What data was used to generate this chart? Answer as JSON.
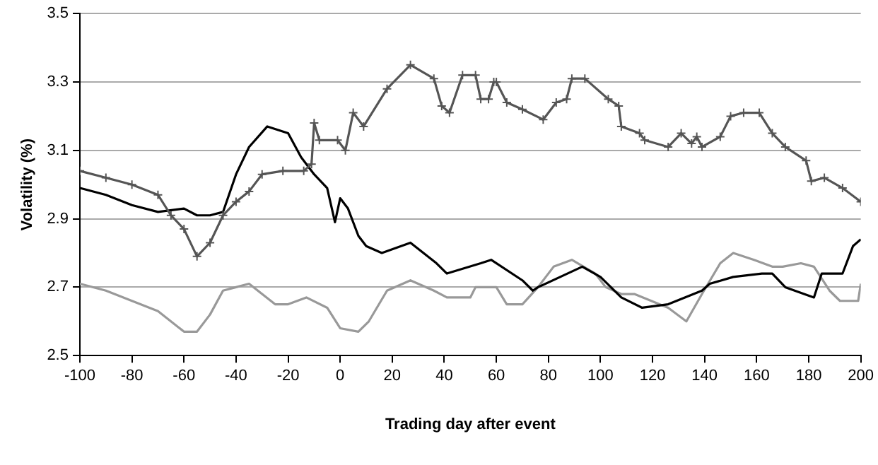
{
  "chart_data": {
    "type": "line",
    "xlabel": "Trading day after event",
    "ylabel": "Volatility (%)",
    "xlim": [
      -100,
      200
    ],
    "xticks": [
      -100,
      -80,
      -60,
      -40,
      -20,
      0,
      20,
      40,
      60,
      80,
      100,
      120,
      140,
      160,
      180,
      200
    ],
    "ylim": [
      2.5,
      3.5
    ],
    "yticks": [
      2.5,
      2.7,
      2.9,
      3.1,
      3.3,
      3.5
    ],
    "grid": "y",
    "legend": false,
    "series": [
      {
        "color": "#555555",
        "marker": "cross",
        "x": [
          -100,
          -90,
          -80,
          -70,
          -65,
          -60,
          -55,
          -50,
          -45,
          -40,
          -35,
          -30,
          -22,
          -14,
          -11,
          -10,
          -8,
          -1,
          2,
          5,
          9,
          18,
          27,
          36,
          39,
          42,
          47,
          52,
          54,
          57,
          59,
          60,
          64,
          70,
          78,
          83,
          87,
          89,
          94,
          103,
          107,
          108,
          115,
          117,
          126,
          131,
          135,
          137,
          139,
          146,
          150,
          155,
          161,
          166,
          171,
          179,
          181,
          186,
          193,
          200
        ],
        "values": [
          3.04,
          3.02,
          3.0,
          2.97,
          2.91,
          2.87,
          2.79,
          2.83,
          2.91,
          2.95,
          2.98,
          3.03,
          3.04,
          3.04,
          3.06,
          3.18,
          3.13,
          3.13,
          3.1,
          3.21,
          3.17,
          3.28,
          3.35,
          3.31,
          3.23,
          3.21,
          3.32,
          3.32,
          3.25,
          3.25,
          3.3,
          3.3,
          3.24,
          3.22,
          3.19,
          3.24,
          3.25,
          3.31,
          3.31,
          3.25,
          3.23,
          3.17,
          3.15,
          3.13,
          3.11,
          3.15,
          3.12,
          3.14,
          3.11,
          3.14,
          3.2,
          3.21,
          3.21,
          3.15,
          3.11,
          3.07,
          3.01,
          3.02,
          2.99,
          2.95
        ]
      },
      {
        "color": "#000000",
        "marker": "none",
        "x": [
          -100,
          -90,
          -80,
          -70,
          -60,
          -55,
          -50,
          -45,
          -40,
          -35,
          -28,
          -20,
          -15,
          -10,
          -5,
          -2,
          0,
          3,
          7,
          10,
          16,
          27,
          37,
          41,
          54,
          58,
          70,
          74,
          76,
          93,
          100,
          108,
          116,
          126,
          139,
          142,
          151,
          162,
          166,
          171,
          182,
          185,
          193,
          197,
          200
        ],
        "values": [
          2.99,
          2.97,
          2.94,
          2.92,
          2.93,
          2.91,
          2.91,
          2.92,
          3.03,
          3.11,
          3.17,
          3.15,
          3.08,
          3.03,
          2.99,
          2.89,
          2.96,
          2.93,
          2.85,
          2.82,
          2.8,
          2.83,
          2.77,
          2.74,
          2.77,
          2.78,
          2.72,
          2.69,
          2.7,
          2.76,
          2.73,
          2.67,
          2.64,
          2.65,
          2.69,
          2.71,
          2.73,
          2.74,
          2.74,
          2.7,
          2.67,
          2.74,
          2.74,
          2.82,
          2.84
        ]
      },
      {
        "color": "#999999",
        "marker": "none",
        "x": [
          -100,
          -90,
          -80,
          -70,
          -60,
          -55,
          -50,
          -45,
          -40,
          -35,
          -30,
          -25,
          -20,
          -13,
          -5,
          0,
          7,
          11,
          18,
          27,
          36,
          41,
          50,
          52,
          60,
          64,
          70,
          76,
          82,
          89,
          98,
          102,
          108,
          113,
          126,
          133,
          139,
          146,
          151,
          159,
          166,
          170,
          177,
          182,
          188,
          192,
          199,
          200
        ],
        "values": [
          2.71,
          2.69,
          2.66,
          2.63,
          2.57,
          2.57,
          2.62,
          2.69,
          2.7,
          2.71,
          2.68,
          2.65,
          2.65,
          2.67,
          2.64,
          2.58,
          2.57,
          2.6,
          2.69,
          2.72,
          2.69,
          2.67,
          2.67,
          2.7,
          2.7,
          2.65,
          2.65,
          2.7,
          2.76,
          2.78,
          2.74,
          2.7,
          2.68,
          2.68,
          2.64,
          2.6,
          2.68,
          2.77,
          2.8,
          2.78,
          2.76,
          2.76,
          2.77,
          2.76,
          2.69,
          2.66,
          2.66,
          2.71
        ]
      }
    ]
  }
}
